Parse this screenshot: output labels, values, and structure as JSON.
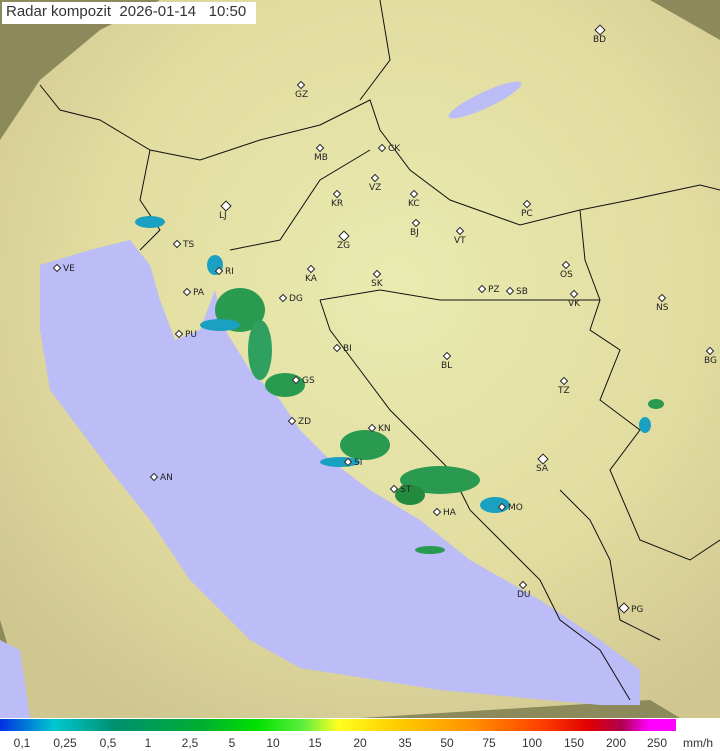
{
  "title": {
    "label": "Radar kompozit",
    "date": "2026-01-14",
    "time": "10:50"
  },
  "colors": {
    "sea": "#bcbcf6",
    "land": "#e6e8b0",
    "outside_coverage": "#8c8a5a",
    "border": "#111111"
  },
  "cities": [
    "BD",
    "GZ",
    "MB",
    "CK",
    "VZ",
    "KR",
    "KC",
    "LJ",
    "BJ",
    "PC",
    "VT",
    "ZG",
    "TS",
    "VE",
    "RI",
    "KA",
    "SK",
    "OS",
    "PA",
    "DG",
    "PZ",
    "SB",
    "VK",
    "NS",
    "PU",
    "BI",
    "BL",
    "BG",
    "GS",
    "TZ",
    "ZD",
    "KN",
    "SA",
    "SI",
    "AN",
    "ST",
    "MO",
    "HA",
    "DU",
    "PG"
  ],
  "legend": {
    "ticks": [
      "0,1",
      "0,25",
      "0,5",
      "1",
      "2,5",
      "5",
      "10",
      "15",
      "20",
      "35",
      "50",
      "75",
      "100",
      "150",
      "200",
      "250"
    ],
    "unit": "mm/h"
  }
}
